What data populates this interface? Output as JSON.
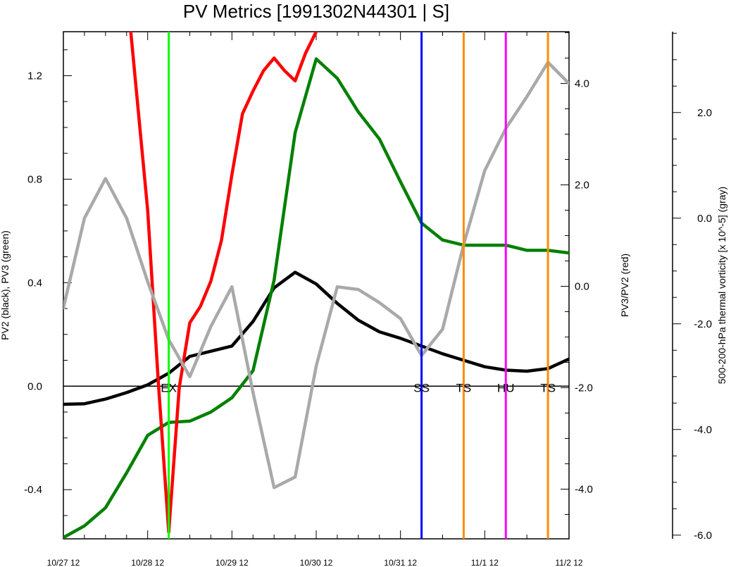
{
  "chart_data": {
    "type": "line",
    "title": "PV Metrics [1991302N44301 | S]",
    "x_axis": {
      "ticks": [
        "10/27 12",
        "10/28 12",
        "10/29 12",
        "10/30 12",
        "10/31 12",
        "11/1 12",
        "11/2 12"
      ],
      "range_days": [
        0,
        6
      ],
      "step_days": 0.25
    },
    "left_axis": {
      "label": "PV2 (black), PV3 (green)",
      "range": [
        -0.59,
        1.37
      ],
      "ticks": [
        -0.4,
        0.0,
        0.4,
        0.8,
        1.2
      ],
      "tick_labels": [
        "-0.4",
        "0.0",
        "0.4",
        "0.8",
        "1.2"
      ]
    },
    "right_axis": {
      "label": "PV3/PV2 (red)",
      "range": [
        -4.98,
        5.02
      ],
      "ticks": [
        -4.0,
        -2.0,
        0.0,
        2.0,
        4.0
      ],
      "tick_labels": [
        "-4.0",
        "-2.0",
        "0.0",
        "2.0",
        "4.0"
      ]
    },
    "far_right_axis": {
      "label": "500-200-hPa thermal vorticity [x 10^-5] (gray)",
      "range": [
        -6.07,
        3.53
      ],
      "ticks": [
        -6.0,
        -4.0,
        -2.0,
        0.0,
        2.0
      ],
      "tick_labels": [
        "-6.0",
        "-4.0",
        "-2.0",
        "0.0",
        "2.0"
      ]
    },
    "zero_line": 0.0,
    "series": [
      {
        "name": "PV2",
        "color": "#000000",
        "axis": "left",
        "values": [
          -0.07,
          -0.068,
          -0.05,
          -0.025,
          0.005,
          0.05,
          0.115,
          0.135,
          0.155,
          0.25,
          0.38,
          0.44,
          0.395,
          0.32,
          0.255,
          0.21,
          0.185,
          0.155,
          0.125,
          0.1,
          0.075,
          0.062,
          0.058,
          0.068,
          0.105
        ]
      },
      {
        "name": "PV3",
        "color": "#008000",
        "axis": "left",
        "values": [
          -0.585,
          -0.54,
          -0.47,
          -0.335,
          -0.19,
          -0.14,
          -0.135,
          -0.1,
          -0.045,
          0.06,
          0.41,
          0.98,
          1.265,
          1.19,
          1.06,
          0.955,
          0.79,
          0.63,
          0.565,
          0.545,
          0.545,
          0.545,
          0.525,
          0.525,
          0.515
        ]
      },
      {
        "name": "PV3/PV2",
        "color": "#ff0000",
        "axis": "right",
        "values_by_time": [
          {
            "t": 3.2,
            "v": 5.02
          },
          {
            "t": 4.0,
            "v": 1.5
          },
          {
            "t": 4.5,
            "v": -1.85
          },
          {
            "t": 5.0,
            "v": -4.85
          },
          {
            "t": 5.5,
            "v": -2.0
          },
          {
            "t": 6.0,
            "v": -0.72
          },
          {
            "t": 6.5,
            "v": -0.4
          },
          {
            "t": 7.0,
            "v": 0.1
          },
          {
            "t": 7.5,
            "v": 0.9
          },
          {
            "t": 8.0,
            "v": 2.2
          },
          {
            "t": 8.5,
            "v": 3.4
          },
          {
            "t": 9.0,
            "v": 3.85
          },
          {
            "t": 9.5,
            "v": 4.25
          },
          {
            "t": 10.0,
            "v": 4.5
          },
          {
            "t": 10.5,
            "v": 4.25
          },
          {
            "t": 11.0,
            "v": 4.05
          },
          {
            "t": 11.5,
            "v": 4.6
          },
          {
            "t": 12.0,
            "v": 5.02
          }
        ]
      },
      {
        "name": "Thermal vorticity",
        "color": "#a9a9a9",
        "axis": "far_right",
        "values": [
          -1.7,
          0.0,
          0.75,
          0.0,
          -1.2,
          -2.3,
          -3.0,
          -2.05,
          -1.3,
          -3.3,
          -5.1,
          -4.9,
          -2.8,
          -1.3,
          -1.35,
          -1.6,
          -1.9,
          -2.6,
          -2.1,
          -0.5,
          0.9,
          1.7,
          2.3,
          2.95,
          2.55
        ]
      }
    ],
    "events": [
      {
        "label": "EX",
        "day": 1.25,
        "color": "#00ff00"
      },
      {
        "label": "SS",
        "day": 4.25,
        "color": "#0000ff"
      },
      {
        "label": "TS",
        "day": 4.75,
        "color": "#ff8c00"
      },
      {
        "label": "HU",
        "day": 5.25,
        "color": "#ff00ff"
      },
      {
        "label": "TS",
        "day": 5.75,
        "color": "#ff8c00"
      }
    ]
  }
}
